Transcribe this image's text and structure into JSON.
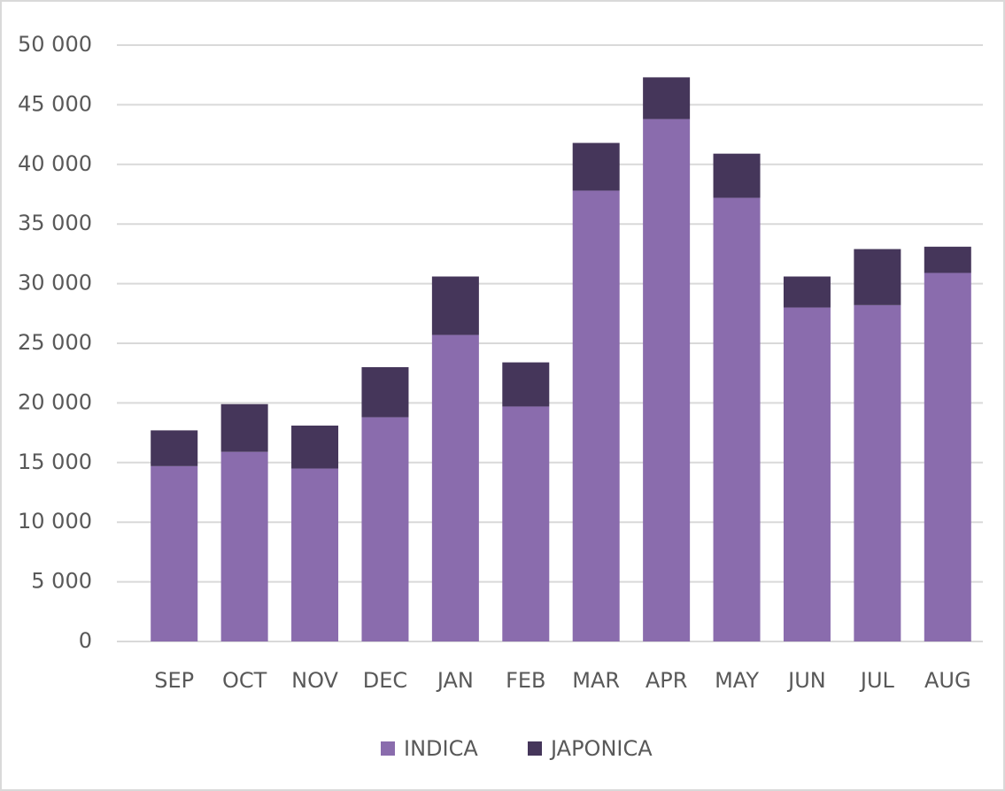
{
  "chart_data": {
    "type": "stacked_bar",
    "categories": [
      "SEP",
      "OCT",
      "NOV",
      "DEC",
      "JAN",
      "FEB",
      "MAR",
      "APR",
      "MAY",
      "JUN",
      "JUL",
      "AUG"
    ],
    "series": [
      {
        "name": "INDICA",
        "color": "#8a6cad",
        "values": [
          14700,
          15900,
          14500,
          18800,
          25700,
          19700,
          37800,
          43800,
          37200,
          28000,
          28200,
          30900
        ]
      },
      {
        "name": "JAPONICA",
        "color": "#45365a",
        "values": [
          3000,
          4000,
          3600,
          4200,
          4900,
          3700,
          4000,
          3500,
          3700,
          2600,
          4700,
          2200
        ]
      }
    ],
    "ylim": [
      0,
      50000
    ],
    "yticks": [
      0,
      {
        "value": 5000,
        "label": "5 000"
      },
      {
        "value": 10000,
        "label": "10 000"
      },
      {
        "value": 15000,
        "label": "15 000"
      },
      {
        "value": 20000,
        "label": "20 000"
      },
      {
        "value": 25000,
        "label": "25 000"
      },
      {
        "value": 30000,
        "label": "30 000"
      },
      {
        "value": 35000,
        "label": "35 000"
      },
      {
        "value": 40000,
        "label": "40 000"
      },
      {
        "value": 45000,
        "label": "45 000"
      },
      {
        "value": 50000,
        "label": "50 000"
      }
    ],
    "grid": true,
    "legend": "bottom"
  }
}
